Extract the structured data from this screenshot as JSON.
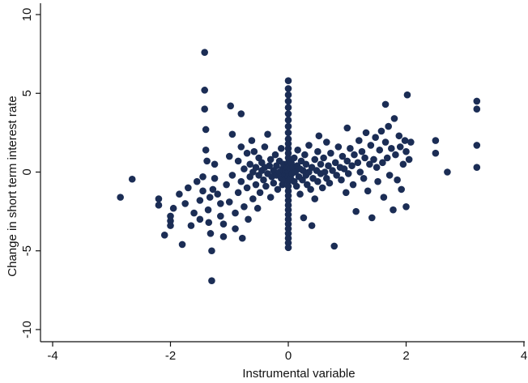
{
  "chart_data": {
    "type": "scatter",
    "title": "",
    "xlabel": "Instrumental variable",
    "ylabel": "Change in short term interest rate",
    "xlim": [
      -4,
      4
    ],
    "ylim": [
      -10,
      10
    ],
    "xticks": [
      -4,
      -2,
      0,
      2,
      4
    ],
    "yticks": [
      -10,
      -5,
      0,
      5,
      10
    ],
    "grid": false,
    "legend": "none",
    "marker_color": "#1b2d55",
    "points": [
      [
        -2.85,
        -1.6
      ],
      [
        -2.65,
        -0.45
      ],
      [
        -2.2,
        -1.7
      ],
      [
        -2.2,
        -2.1
      ],
      [
        -2.0,
        -2.8
      ],
      [
        -2.0,
        -3.1
      ],
      [
        -2.0,
        -3.4
      ],
      [
        -2.1,
        -4.0
      ],
      [
        -1.95,
        -2.3
      ],
      [
        -1.85,
        -1.4
      ],
      [
        -1.8,
        -4.6
      ],
      [
        -1.75,
        -2.0
      ],
      [
        -1.7,
        -1.0
      ],
      [
        -1.65,
        -3.4
      ],
      [
        -1.6,
        -2.6
      ],
      [
        -1.55,
        -0.6
      ],
      [
        -1.5,
        -1.8
      ],
      [
        -1.5,
        -3.0
      ],
      [
        -1.45,
        -0.3
      ],
      [
        -1.45,
        -1.2
      ],
      [
        -1.42,
        7.6
      ],
      [
        -1.42,
        5.2
      ],
      [
        -1.42,
        4.0
      ],
      [
        -1.4,
        2.7
      ],
      [
        -1.4,
        1.4
      ],
      [
        -1.38,
        0.7
      ],
      [
        -1.36,
        -2.4
      ],
      [
        -1.35,
        -3.2
      ],
      [
        -1.33,
        -1.6
      ],
      [
        -1.32,
        -3.9
      ],
      [
        -1.3,
        -5.0
      ],
      [
        -1.3,
        -6.9
      ],
      [
        -1.28,
        -1.1
      ],
      [
        -1.25,
        -0.4
      ],
      [
        -1.25,
        0.5
      ],
      [
        -1.2,
        -1.4
      ],
      [
        -1.15,
        -2.0
      ],
      [
        -1.15,
        -2.8
      ],
      [
        -1.1,
        -3.3
      ],
      [
        -1.1,
        -4.1
      ],
      [
        -1.05,
        -0.8
      ],
      [
        -1.0,
        1.0
      ],
      [
        -1.0,
        -1.9
      ],
      [
        -0.98,
        4.2
      ],
      [
        -0.95,
        2.4
      ],
      [
        -0.95,
        -0.2
      ],
      [
        -0.9,
        -2.6
      ],
      [
        -0.9,
        -3.6
      ],
      [
        -0.85,
        0.7
      ],
      [
        -0.85,
        -1.3
      ],
      [
        -0.8,
        3.7
      ],
      [
        -0.8,
        1.6
      ],
      [
        -0.8,
        -0.6
      ],
      [
        -0.78,
        -4.2
      ],
      [
        -0.75,
        0.2
      ],
      [
        -0.75,
        -2.2
      ],
      [
        -0.7,
        1.2
      ],
      [
        -0.7,
        -1.0
      ],
      [
        -0.68,
        -3.0
      ],
      [
        -0.65,
        0.5
      ],
      [
        -0.65,
        -0.3
      ],
      [
        -0.62,
        2.0
      ],
      [
        -0.6,
        -1.7
      ],
      [
        -0.6,
        0.0
      ],
      [
        -0.58,
        1.3
      ],
      [
        -0.55,
        -0.8
      ],
      [
        -0.55,
        0.3
      ],
      [
        -0.52,
        -2.3
      ],
      [
        -0.5,
        0.9
      ],
      [
        -0.5,
        -0.2
      ],
      [
        -0.48,
        -1.3
      ],
      [
        -0.45,
        0.1
      ],
      [
        -0.45,
        0.6
      ],
      [
        -0.42,
        -0.5
      ],
      [
        -0.4,
        1.6
      ],
      [
        -0.4,
        0.3
      ],
      [
        -0.38,
        -0.9
      ],
      [
        -0.35,
        -0.1
      ],
      [
        -0.35,
        2.4
      ],
      [
        -0.32,
        0.4
      ],
      [
        -0.3,
        -1.6
      ],
      [
        -0.3,
        0.8
      ],
      [
        -0.28,
        -0.3
      ],
      [
        -0.25,
        0.1
      ],
      [
        -0.25,
        -0.7
      ],
      [
        -0.22,
        1.1
      ],
      [
        -0.2,
        -0.2
      ],
      [
        -0.2,
        0.4
      ],
      [
        -0.18,
        -1.1
      ],
      [
        -0.15,
        0.0
      ],
      [
        -0.15,
        0.7
      ],
      [
        -0.12,
        -0.4
      ],
      [
        -0.12,
        1.5
      ],
      [
        -0.1,
        0.2
      ],
      [
        -0.1,
        -0.8
      ],
      [
        -0.08,
        0.5
      ],
      [
        -0.06,
        -0.2
      ],
      [
        -0.05,
        0.1
      ],
      [
        -0.04,
        -0.5
      ],
      [
        -0.02,
        0.3
      ],
      [
        0.0,
        5.8
      ],
      [
        0.0,
        5.3
      ],
      [
        0.0,
        4.9
      ],
      [
        0.0,
        4.5
      ],
      [
        0.0,
        4.1
      ],
      [
        0.0,
        3.7
      ],
      [
        0.0,
        3.3
      ],
      [
        0.0,
        2.9
      ],
      [
        0.0,
        2.5
      ],
      [
        0.0,
        2.1
      ],
      [
        0.0,
        1.8
      ],
      [
        0.0,
        1.5
      ],
      [
        0.0,
        1.2
      ],
      [
        0.0,
        0.9
      ],
      [
        0.0,
        0.6
      ],
      [
        0.0,
        0.3
      ],
      [
        0.0,
        0.0
      ],
      [
        0.0,
        -0.3
      ],
      [
        0.0,
        -0.6
      ],
      [
        0.0,
        -0.9
      ],
      [
        0.0,
        -1.2
      ],
      [
        0.0,
        -1.5
      ],
      [
        0.0,
        -1.8
      ],
      [
        0.0,
        -2.1
      ],
      [
        0.0,
        -2.4
      ],
      [
        0.0,
        -2.7
      ],
      [
        0.0,
        -3.0
      ],
      [
        0.0,
        -3.3
      ],
      [
        0.0,
        -3.6
      ],
      [
        0.0,
        -3.9
      ],
      [
        0.0,
        -4.2
      ],
      [
        0.0,
        -4.5
      ],
      [
        0.0,
        -4.8
      ],
      [
        0.03,
        0.2
      ],
      [
        0.04,
        -0.4
      ],
      [
        0.05,
        0.6
      ],
      [
        0.06,
        -0.1
      ],
      [
        0.08,
        0.3
      ],
      [
        0.1,
        -0.6
      ],
      [
        0.1,
        0.9
      ],
      [
        0.12,
        0.0
      ],
      [
        0.14,
        -0.9
      ],
      [
        0.15,
        0.4
      ],
      [
        0.16,
        1.4
      ],
      [
        0.18,
        -0.3
      ],
      [
        0.2,
        0.2
      ],
      [
        0.2,
        -1.4
      ],
      [
        0.22,
        0.7
      ],
      [
        0.24,
        -0.5
      ],
      [
        0.25,
        0.1
      ],
      [
        0.26,
        -2.9
      ],
      [
        0.28,
        1.1
      ],
      [
        0.3,
        -0.2
      ],
      [
        0.3,
        0.5
      ],
      [
        0.32,
        -0.8
      ],
      [
        0.35,
        0.0
      ],
      [
        0.35,
        1.7
      ],
      [
        0.38,
        -1.1
      ],
      [
        0.4,
        0.3
      ],
      [
        0.4,
        -3.4
      ],
      [
        0.42,
        -0.4
      ],
      [
        0.45,
        0.8
      ],
      [
        0.45,
        -1.7
      ],
      [
        0.48,
        0.1
      ],
      [
        0.5,
        1.3
      ],
      [
        0.5,
        -0.6
      ],
      [
        0.52,
        2.3
      ],
      [
        0.55,
        -0.1
      ],
      [
        0.55,
        0.5
      ],
      [
        0.58,
        -1.0
      ],
      [
        0.6,
        0.9
      ],
      [
        0.62,
        0.0
      ],
      [
        0.65,
        -0.4
      ],
      [
        0.65,
        1.9
      ],
      [
        0.68,
        0.4
      ],
      [
        0.7,
        -0.7
      ],
      [
        0.72,
        1.2
      ],
      [
        0.75,
        0.1
      ],
      [
        0.78,
        -4.7
      ],
      [
        0.8,
        0.6
      ],
      [
        0.82,
        -0.2
      ],
      [
        0.85,
        1.6
      ],
      [
        0.88,
        0.3
      ],
      [
        0.9,
        -0.5
      ],
      [
        0.92,
        1.0
      ],
      [
        0.95,
        0.2
      ],
      [
        0.98,
        -1.3
      ],
      [
        1.0,
        2.8
      ],
      [
        1.0,
        0.7
      ],
      [
        1.02,
        -0.1
      ],
      [
        1.05,
        1.5
      ],
      [
        1.08,
        0.4
      ],
      [
        1.1,
        -0.8
      ],
      [
        1.12,
        1.1
      ],
      [
        1.15,
        -2.5
      ],
      [
        1.18,
        0.6
      ],
      [
        1.2,
        2.0
      ],
      [
        1.22,
        0.0
      ],
      [
        1.25,
        1.3
      ],
      [
        1.28,
        -0.4
      ],
      [
        1.3,
        0.9
      ],
      [
        1.32,
        2.5
      ],
      [
        1.35,
        -1.2
      ],
      [
        1.38,
        0.5
      ],
      [
        1.4,
        1.7
      ],
      [
        1.42,
        -2.9
      ],
      [
        1.45,
        0.8
      ],
      [
        1.48,
        2.2
      ],
      [
        1.5,
        0.3
      ],
      [
        1.52,
        -0.6
      ],
      [
        1.55,
        1.4
      ],
      [
        1.58,
        2.6
      ],
      [
        1.6,
        0.6
      ],
      [
        1.62,
        -1.6
      ],
      [
        1.65,
        1.9
      ],
      [
        1.65,
        4.3
      ],
      [
        1.68,
        0.9
      ],
      [
        1.7,
        2.9
      ],
      [
        1.72,
        -0.2
      ],
      [
        1.75,
        1.5
      ],
      [
        1.78,
        -2.4
      ],
      [
        1.8,
        3.4
      ],
      [
        1.82,
        1.1
      ],
      [
        1.85,
        -0.5
      ],
      [
        1.88,
        2.3
      ],
      [
        1.9,
        1.6
      ],
      [
        1.92,
        -1.1
      ],
      [
        1.95,
        0.5
      ],
      [
        1.98,
        2.0
      ],
      [
        2.0,
        1.3
      ],
      [
        2.0,
        -2.2
      ],
      [
        2.02,
        4.9
      ],
      [
        2.05,
        0.8
      ],
      [
        2.08,
        1.9
      ],
      [
        2.5,
        2.0
      ],
      [
        2.5,
        1.2
      ],
      [
        2.7,
        0.0
      ],
      [
        3.2,
        4.5
      ],
      [
        3.2,
        4.0
      ],
      [
        3.2,
        1.7
      ],
      [
        3.2,
        0.3
      ]
    ]
  }
}
